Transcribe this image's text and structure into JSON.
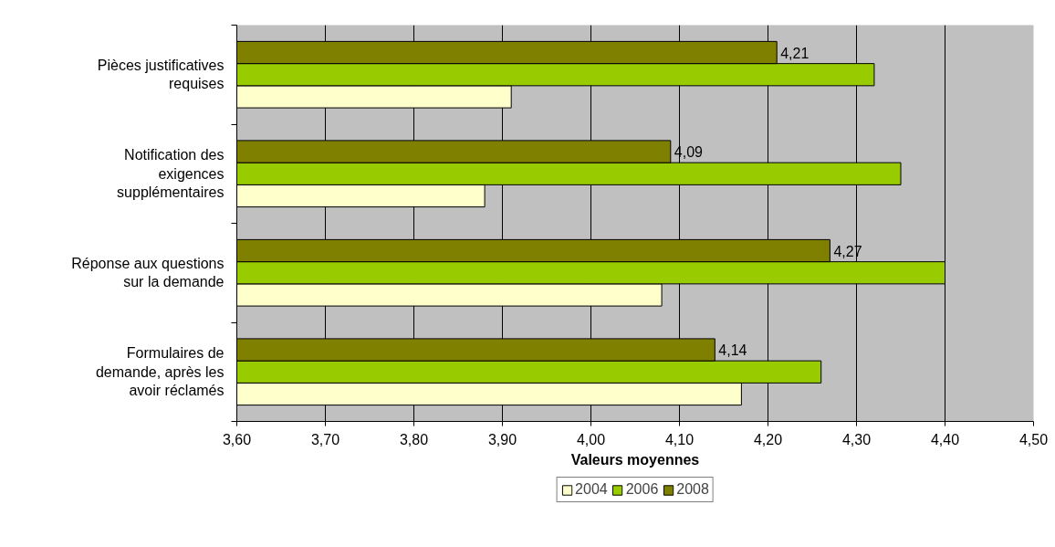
{
  "chart_data": {
    "type": "bar",
    "orientation": "horizontal",
    "xlabel": "Valeurs moyennes",
    "categories": [
      "Pièces justificatives requises",
      "Notification des exigences supplémentaires",
      "Réponse aux questions sur la demande",
      "Formulaires de demande, après les avoir réclamés"
    ],
    "series": [
      {
        "name": "2004",
        "color": "#ffffcc",
        "values": [
          3.91,
          3.88,
          4.08,
          4.17
        ]
      },
      {
        "name": "2006",
        "color": "#99cc00",
        "values": [
          4.32,
          4.35,
          4.4,
          4.26
        ]
      },
      {
        "name": "2008",
        "color": "#808000",
        "values": [
          4.21,
          4.09,
          4.27,
          4.14
        ],
        "value_labels": [
          "4,21",
          "4,09",
          "4,27",
          "4,14"
        ]
      }
    ],
    "xlim": [
      3.6,
      4.5
    ],
    "xticks": [
      {
        "value": 3.6,
        "label": "3,60"
      },
      {
        "value": 3.7,
        "label": "3,70"
      },
      {
        "value": 3.8,
        "label": "3,80"
      },
      {
        "value": 3.9,
        "label": "3,90"
      },
      {
        "value": 4.0,
        "label": "4,00"
      },
      {
        "value": 4.1,
        "label": "4,10"
      },
      {
        "value": 4.2,
        "label": "4,20"
      },
      {
        "value": 4.3,
        "label": "4,30"
      },
      {
        "value": 4.4,
        "label": "4,40"
      },
      {
        "value": 4.5,
        "label": "4,50"
      }
    ],
    "grid": "x",
    "legend": "bottom"
  }
}
